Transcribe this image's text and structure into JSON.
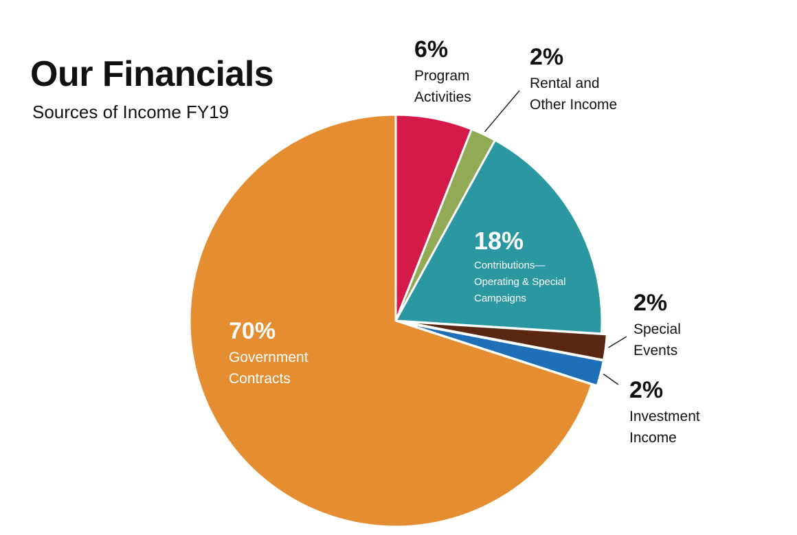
{
  "title": "Our Financials",
  "subtitle": "Sources of Income FY19",
  "chart_data": {
    "type": "pie",
    "unit": "%",
    "slices": [
      {
        "label_lines": [
          "Program",
          "Activities"
        ],
        "pct_label": "6%",
        "value": 6,
        "color": "#d31a48"
      },
      {
        "label_lines": [
          "Rental and",
          "Other Income"
        ],
        "pct_label": "2%",
        "value": 2,
        "color": "#92a955"
      },
      {
        "label_lines": [
          "Contributions—",
          "Operating & Special",
          "Campaigns"
        ],
        "pct_label": "18%",
        "value": 18,
        "color": "#2a97a1"
      },
      {
        "label_lines": [
          "Special",
          "Events"
        ],
        "pct_label": "2%",
        "value": 2,
        "color": "#5a2812"
      },
      {
        "label_lines": [
          "Investment",
          "Income"
        ],
        "pct_label": "2%",
        "value": 2,
        "color": "#1e6fb8"
      },
      {
        "label_lines": [
          "Government",
          "Contracts"
        ],
        "pct_label": "70%",
        "value": 70,
        "color": "#e58d31"
      }
    ],
    "start": "12 o'clock",
    "direction": "clockwise"
  }
}
